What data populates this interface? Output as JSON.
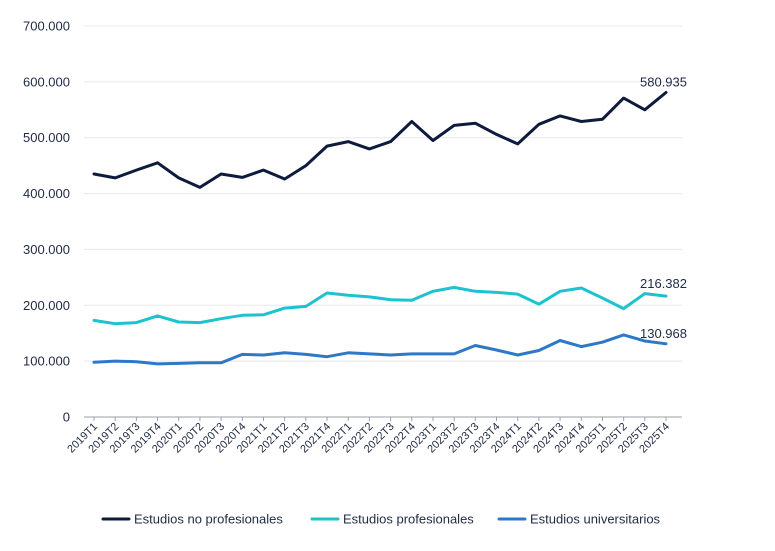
{
  "chart_data": {
    "type": "line",
    "title": "",
    "xlabel": "",
    "ylabel": "",
    "ylim": [
      0,
      700000
    ],
    "yticks": [
      0,
      100000,
      200000,
      300000,
      400000,
      500000,
      600000,
      700000
    ],
    "ytick_labels": [
      "0",
      "100.000",
      "200.000",
      "300.000",
      "400.000",
      "500.000",
      "600.000",
      "700.000"
    ],
    "grid": "horizontal",
    "legend_position": "bottom",
    "categories": [
      "2019T1",
      "2019T2",
      "2019T3",
      "2019T4",
      "2020T1",
      "2020T2",
      "2020T3",
      "2020T4",
      "2021T1",
      "2021T2",
      "2021T3",
      "2021T4",
      "2022T1",
      "2022T2",
      "2022T3",
      "2022T4",
      "2023T1",
      "2023T2",
      "2023T3",
      "2023T4",
      "2024T1",
      "2024T2",
      "2024T3",
      "2024T4",
      "2025T1",
      "2025T2",
      "2025T3",
      "2025T4"
    ],
    "series": [
      {
        "name": "Estudios no profesionales",
        "color": "#0f1b3d",
        "values": [
          435000,
          428000,
          442000,
          455000,
          428000,
          411000,
          435000,
          429000,
          442000,
          426000,
          450000,
          485000,
          493000,
          480000,
          493000,
          529000,
          495000,
          522000,
          526000,
          506000,
          489000,
          524000,
          539000,
          529000,
          533000,
          571000,
          550000,
          580935
        ],
        "end_label": "580.935"
      },
      {
        "name": "Estudios profesionales",
        "color": "#1cc3cf",
        "values": [
          173000,
          167000,
          169000,
          181000,
          170000,
          169000,
          176000,
          182000,
          183000,
          195000,
          198000,
          222000,
          218000,
          215000,
          210000,
          209000,
          225000,
          232000,
          225000,
          223000,
          220000,
          202000,
          225000,
          231000,
          213000,
          194000,
          221000,
          216382
        ],
        "end_label": "216.382"
      },
      {
        "name": "Estudios universitarios",
        "color": "#2e78c8",
        "values": [
          98000,
          100000,
          99000,
          95000,
          96000,
          97000,
          97000,
          112000,
          111000,
          115000,
          112000,
          108000,
          115000,
          113000,
          111000,
          113000,
          113000,
          113000,
          128000,
          120000,
          111000,
          119000,
          137000,
          126000,
          134000,
          147000,
          136000,
          130968
        ],
        "end_label": "130.968"
      }
    ]
  }
}
